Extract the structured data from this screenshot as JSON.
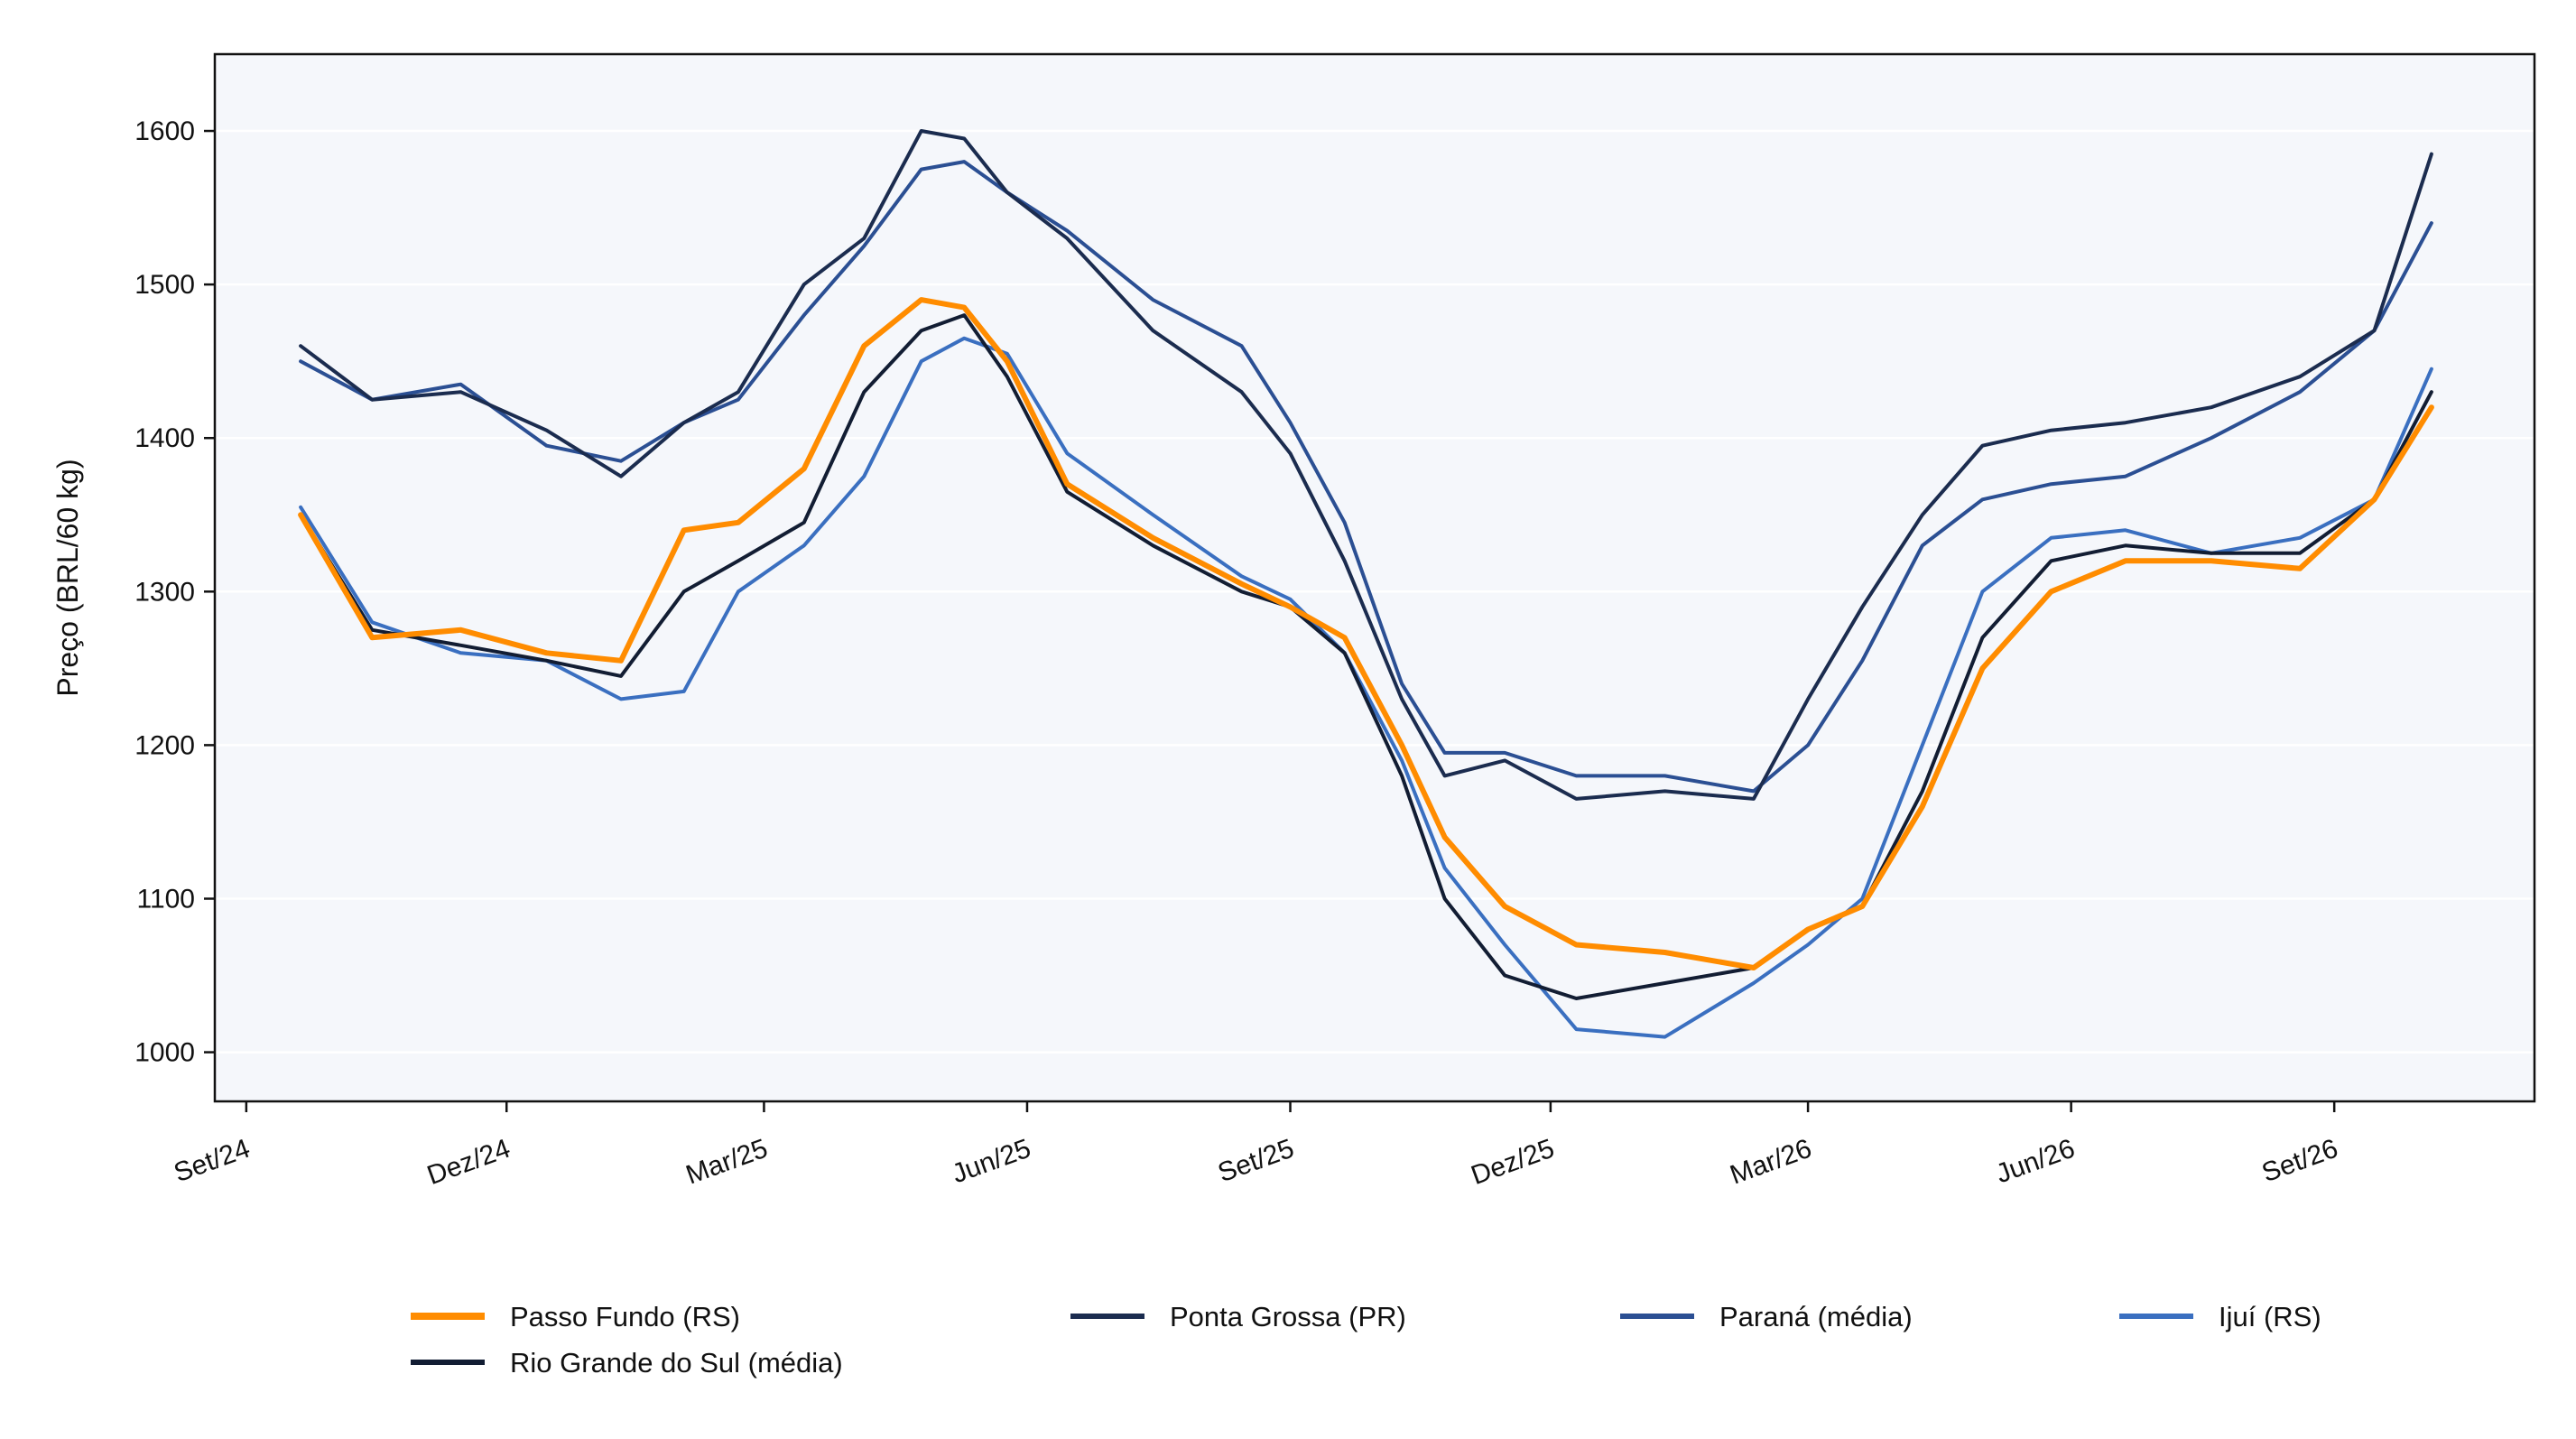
{
  "chart_data": {
    "type": "line",
    "title": "",
    "xlabel": "",
    "ylabel": "Preço (BRL/60 kg)",
    "xlim": [
      "2024-08-21",
      "2026-11-10"
    ],
    "ylim": [
      968,
      1650
    ],
    "grid": "horizontal",
    "legend_position": "bottom",
    "x_ticks": [
      "Set/24",
      "Dez/24",
      "Mar/25",
      "Jun/25",
      "Set/25",
      "Dez/25",
      "Mar/26",
      "Jun/26",
      "Set/26"
    ],
    "y_ticks": [
      1000,
      1100,
      1200,
      1300,
      1400,
      1500,
      1600
    ],
    "x": [
      "2024-09-20",
      "2024-10-15",
      "2024-11-15",
      "2024-12-15",
      "2025-01-10",
      "2025-02-01",
      "2025-02-20",
      "2025-03-15",
      "2025-04-05",
      "2025-04-25",
      "2025-05-10",
      "2025-05-25",
      "2025-06-15",
      "2025-07-15",
      "2025-08-15",
      "2025-09-01",
      "2025-09-20",
      "2025-10-10",
      "2025-10-25",
      "2025-11-15",
      "2025-12-10",
      "2026-01-10",
      "2026-02-10",
      "2026-03-01",
      "2026-03-20",
      "2026-04-10",
      "2026-05-01",
      "2026-05-25",
      "2026-06-20",
      "2026-07-20",
      "2026-08-20",
      "2026-09-15",
      "2026-10-05"
    ],
    "series": [
      {
        "name": "Passo Fundo (RS)",
        "color": "#ff8c00",
        "width": 6,
        "values": [
          1350,
          1270,
          1275,
          1260,
          1255,
          1340,
          1345,
          1380,
          1460,
          1490,
          1485,
          1450,
          1370,
          1335,
          1305,
          1290,
          1270,
          1200,
          1140,
          1095,
          1070,
          1065,
          1055,
          1080,
          1095,
          1160,
          1250,
          1300,
          1320,
          1320,
          1315,
          1360,
          1420
        ]
      },
      {
        "name": "Ponta Grossa (PR)",
        "color": "#1b2c4f",
        "width": 4,
        "values": [
          1460,
          1425,
          1430,
          1405,
          1375,
          1410,
          1430,
          1500,
          1530,
          1600,
          1595,
          1560,
          1530,
          1470,
          1430,
          1390,
          1320,
          1230,
          1180,
          1190,
          1165,
          1170,
          1165,
          1230,
          1290,
          1350,
          1395,
          1405,
          1410,
          1420,
          1440,
          1470,
          1585
        ]
      },
      {
        "name": "Paraná (média)",
        "color": "#2b4f93",
        "width": 4,
        "values": [
          1450,
          1425,
          1435,
          1395,
          1385,
          1410,
          1425,
          1480,
          1525,
          1575,
          1580,
          1560,
          1535,
          1490,
          1460,
          1410,
          1345,
          1240,
          1195,
          1195,
          1180,
          1180,
          1170,
          1200,
          1255,
          1330,
          1360,
          1370,
          1375,
          1400,
          1430,
          1470,
          1540
        ]
      },
      {
        "name": "Ijuí (RS)",
        "color": "#3a6fc0",
        "width": 4,
        "values": [
          1355,
          1280,
          1260,
          1255,
          1230,
          1235,
          1300,
          1330,
          1375,
          1450,
          1465,
          1455,
          1390,
          1350,
          1310,
          1295,
          1260,
          1190,
          1120,
          1070,
          1015,
          1010,
          1045,
          1070,
          1100,
          1200,
          1300,
          1335,
          1340,
          1325,
          1335,
          1360,
          1445
        ]
      },
      {
        "name": "Rio Grande do Sul (média)",
        "color": "#121d33",
        "width": 4,
        "values": [
          1350,
          1275,
          1265,
          1255,
          1245,
          1300,
          1320,
          1345,
          1430,
          1470,
          1480,
          1440,
          1365,
          1330,
          1300,
          1290,
          1260,
          1180,
          1100,
          1050,
          1035,
          1045,
          1055,
          1080,
          1095,
          1170,
          1270,
          1320,
          1330,
          1325,
          1325,
          1360,
          1430
        ]
      }
    ]
  }
}
